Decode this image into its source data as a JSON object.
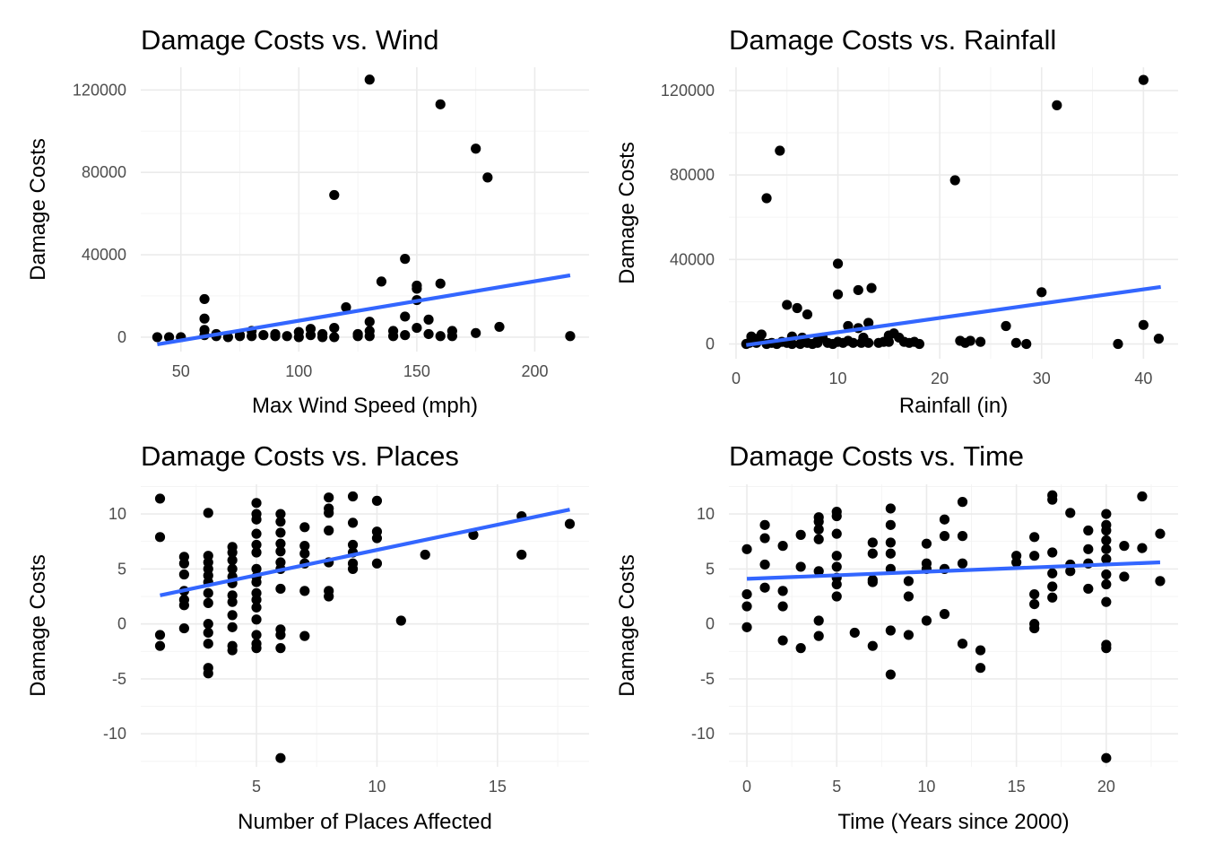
{
  "chart_data": [
    {
      "type": "scatter",
      "title": "Damage Costs vs. Wind",
      "xlabel": "Max Wind Speed (mph)",
      "ylabel": "Damage Costs",
      "xlim": [
        33,
        223
      ],
      "ylim": [
        -7000,
        131000
      ],
      "xticks": [
        50,
        100,
        150,
        200
      ],
      "yticks": [
        0,
        40000,
        80000,
        120000
      ],
      "grid": true,
      "trend": {
        "x": [
          40,
          215
        ],
        "y": [
          -3500,
          30000
        ]
      },
      "points": [
        [
          40,
          0
        ],
        [
          45,
          0
        ],
        [
          50,
          0
        ],
        [
          60,
          18500
        ],
        [
          60,
          9000
        ],
        [
          60,
          3500
        ],
        [
          60,
          1000
        ],
        [
          65,
          1500
        ],
        [
          65,
          500
        ],
        [
          70,
          0
        ],
        [
          75,
          500
        ],
        [
          75,
          1000
        ],
        [
          80,
          3000
        ],
        [
          80,
          500
        ],
        [
          85,
          1000
        ],
        [
          90,
          1500
        ],
        [
          90,
          500
        ],
        [
          95,
          500
        ],
        [
          100,
          2500
        ],
        [
          100,
          0
        ],
        [
          105,
          4000
        ],
        [
          105,
          1000
        ],
        [
          110,
          0
        ],
        [
          110,
          1500
        ],
        [
          115,
          69000
        ],
        [
          115,
          4500
        ],
        [
          115,
          0
        ],
        [
          120,
          14500
        ],
        [
          125,
          1500
        ],
        [
          125,
          500
        ],
        [
          130,
          7500
        ],
        [
          130,
          3000
        ],
        [
          130,
          500
        ],
        [
          130,
          125000
        ],
        [
          135,
          27000
        ],
        [
          140,
          500
        ],
        [
          140,
          3000
        ],
        [
          145,
          38000
        ],
        [
          145,
          10000
        ],
        [
          145,
          1000
        ],
        [
          150,
          25000
        ],
        [
          150,
          23500
        ],
        [
          150,
          18000
        ],
        [
          150,
          4500
        ],
        [
          155,
          8500
        ],
        [
          155,
          1500
        ],
        [
          160,
          113000
        ],
        [
          160,
          26000
        ],
        [
          160,
          500
        ],
        [
          165,
          3000
        ],
        [
          165,
          500
        ],
        [
          175,
          91500
        ],
        [
          175,
          2000
        ],
        [
          180,
          77500
        ],
        [
          185,
          5000
        ],
        [
          215,
          500
        ]
      ]
    },
    {
      "type": "scatter",
      "title": "Damage Costs vs. Rainfall",
      "xlabel": "Rainfall (in)",
      "ylabel": "Damage Costs",
      "xlim": [
        -0.7,
        43.4
      ],
      "ylim": [
        -7000,
        131000
      ],
      "xticks": [
        0,
        10,
        20,
        30,
        40
      ],
      "yticks": [
        0,
        40000,
        80000,
        120000
      ],
      "grid": true,
      "trend": {
        "x": [
          1,
          41.7
        ],
        "y": [
          -500,
          27000
        ]
      },
      "points": [
        [
          1,
          0
        ],
        [
          1.3,
          500
        ],
        [
          1.5,
          3500
        ],
        [
          1.8,
          1000
        ],
        [
          2,
          500
        ],
        [
          2.3,
          3000
        ],
        [
          2.5,
          4500
        ],
        [
          3,
          0
        ],
        [
          3,
          69000
        ],
        [
          3.5,
          500
        ],
        [
          4,
          0
        ],
        [
          4.3,
          91500
        ],
        [
          4.5,
          1000
        ],
        [
          5,
          500
        ],
        [
          5,
          18500
        ],
        [
          5.5,
          3500
        ],
        [
          5.5,
          0
        ],
        [
          6,
          17000
        ],
        [
          6.3,
          0
        ],
        [
          6.5,
          3000
        ],
        [
          7,
          14000
        ],
        [
          7,
          500
        ],
        [
          7.5,
          0
        ],
        [
          8,
          1500
        ],
        [
          8,
          500
        ],
        [
          8.5,
          3000
        ],
        [
          9,
          500
        ],
        [
          9.5,
          0
        ],
        [
          10,
          38000
        ],
        [
          10,
          23500
        ],
        [
          10,
          1000
        ],
        [
          10.5,
          500
        ],
        [
          11,
          8500
        ],
        [
          11,
          1500
        ],
        [
          11.5,
          500
        ],
        [
          12,
          25500
        ],
        [
          12,
          7500
        ],
        [
          12.3,
          500
        ],
        [
          12.5,
          3000
        ],
        [
          13,
          10000
        ],
        [
          13,
          500
        ],
        [
          13.3,
          26500
        ],
        [
          14,
          500
        ],
        [
          14.5,
          1000
        ],
        [
          15,
          4000
        ],
        [
          15,
          1000
        ],
        [
          15.5,
          5000
        ],
        [
          16,
          3000
        ],
        [
          16.5,
          1000
        ],
        [
          17,
          500
        ],
        [
          17.5,
          1000
        ],
        [
          18,
          0
        ],
        [
          21.5,
          77500
        ],
        [
          22,
          1500
        ],
        [
          22.5,
          500
        ],
        [
          23,
          1500
        ],
        [
          24,
          1000
        ],
        [
          26.5,
          8500
        ],
        [
          27.5,
          500
        ],
        [
          28.5,
          0
        ],
        [
          30,
          24500
        ],
        [
          31.5,
          113000
        ],
        [
          37.5,
          0
        ],
        [
          40,
          125000
        ],
        [
          40,
          9000
        ],
        [
          41.5,
          2500
        ]
      ]
    },
    {
      "type": "scatter",
      "title": "Damage Costs vs. Places",
      "xlabel": "Number of Places Affected",
      "ylabel": "Damage Costs",
      "xlim": [
        0.2,
        18.8
      ],
      "ylim": [
        -13.0,
        12.7
      ],
      "xticks": [
        5,
        10,
        15
      ],
      "yticks": [
        -10,
        -5,
        0,
        5,
        10
      ],
      "grid": true,
      "trend": {
        "x": [
          1,
          18
        ],
        "y": [
          2.6,
          10.4
        ]
      },
      "points": [
        [
          1,
          11.4
        ],
        [
          1,
          7.9
        ],
        [
          1,
          -1.0
        ],
        [
          1,
          -2.0
        ],
        [
          2,
          6.1
        ],
        [
          2,
          5.5
        ],
        [
          2,
          4.5
        ],
        [
          2,
          3.0
        ],
        [
          2,
          2.2
        ],
        [
          2,
          1.7
        ],
        [
          2,
          -0.4
        ],
        [
          3,
          10.1
        ],
        [
          3,
          6.2
        ],
        [
          3,
          5.6
        ],
        [
          3,
          5.0
        ],
        [
          3,
          4.4
        ],
        [
          3,
          3.8
        ],
        [
          3,
          2.8
        ],
        [
          3,
          1.9
        ],
        [
          3,
          0.0
        ],
        [
          3,
          -0.8
        ],
        [
          3,
          -1.8
        ],
        [
          3,
          -4.0
        ],
        [
          3,
          -4.5
        ],
        [
          4,
          7.0
        ],
        [
          4,
          6.5
        ],
        [
          4,
          5.8
        ],
        [
          4,
          5.0
        ],
        [
          4,
          4.3
        ],
        [
          4,
          3.7
        ],
        [
          4,
          2.6
        ],
        [
          4,
          2.0
        ],
        [
          4,
          0.8
        ],
        [
          4,
          -0.3
        ],
        [
          4,
          -2.0
        ],
        [
          4,
          -2.4
        ],
        [
          5,
          11.0
        ],
        [
          5,
          10.0
        ],
        [
          5,
          9.5
        ],
        [
          5,
          8.2
        ],
        [
          5,
          7.2
        ],
        [
          5,
          6.5
        ],
        [
          5,
          5.0
        ],
        [
          5,
          4.3
        ],
        [
          5,
          3.8
        ],
        [
          5,
          2.8
        ],
        [
          5,
          2.2
        ],
        [
          5,
          1.5
        ],
        [
          5,
          0.4
        ],
        [
          5,
          -1.0
        ],
        [
          5,
          -1.8
        ],
        [
          5,
          -2.2
        ],
        [
          6,
          10.0
        ],
        [
          6,
          9.3
        ],
        [
          6,
          8.3
        ],
        [
          6,
          7.3
        ],
        [
          6,
          6.6
        ],
        [
          6,
          5.6
        ],
        [
          6,
          5.0
        ],
        [
          6,
          3.2
        ],
        [
          6,
          -0.5
        ],
        [
          6,
          -1.0
        ],
        [
          6,
          -2.2
        ],
        [
          6,
          -12.2
        ],
        [
          7,
          8.8
        ],
        [
          7,
          7.1
        ],
        [
          7,
          6.4
        ],
        [
          7,
          5.5
        ],
        [
          7,
          3.0
        ],
        [
          7,
          -1.1
        ],
        [
          8,
          11.5
        ],
        [
          8,
          10.5
        ],
        [
          8,
          10.1
        ],
        [
          8,
          8.5
        ],
        [
          8,
          5.6
        ],
        [
          8,
          3.0
        ],
        [
          8,
          2.5
        ],
        [
          9,
          11.6
        ],
        [
          9,
          9.2
        ],
        [
          9,
          7.2
        ],
        [
          9,
          6.5
        ],
        [
          9,
          5.5
        ],
        [
          9,
          5.0
        ],
        [
          10,
          11.2
        ],
        [
          10,
          8.4
        ],
        [
          10,
          7.8
        ],
        [
          10,
          5.5
        ],
        [
          11,
          0.3
        ],
        [
          12,
          6.3
        ],
        [
          14,
          8.1
        ],
        [
          16,
          9.8
        ],
        [
          16,
          6.3
        ],
        [
          18,
          9.1
        ]
      ]
    },
    {
      "type": "scatter",
      "title": "Damage Costs vs. Time",
      "xlabel": "Time (Years since 2000)",
      "ylabel": "Damage Costs",
      "xlim": [
        -1.0,
        24.0
      ],
      "ylim": [
        -13.0,
        12.7
      ],
      "xticks": [
        0,
        5,
        10,
        15,
        20
      ],
      "yticks": [
        -10,
        -5,
        0,
        5,
        10
      ],
      "grid": true,
      "trend": {
        "x": [
          0,
          23
        ],
        "y": [
          4.1,
          5.6
        ]
      },
      "points": [
        [
          0,
          6.8
        ],
        [
          0,
          2.7
        ],
        [
          0,
          1.6
        ],
        [
          0,
          -0.3
        ],
        [
          1,
          9.0
        ],
        [
          1,
          7.8
        ],
        [
          1,
          5.4
        ],
        [
          1,
          3.3
        ],
        [
          2,
          7.1
        ],
        [
          2,
          3.0
        ],
        [
          2,
          1.6
        ],
        [
          2,
          -1.5
        ],
        [
          3,
          8.1
        ],
        [
          3,
          5.2
        ],
        [
          3,
          -2.2
        ],
        [
          4,
          9.7
        ],
        [
          4,
          9.3
        ],
        [
          4,
          8.6
        ],
        [
          4,
          7.7
        ],
        [
          4,
          4.8
        ],
        [
          4,
          0.3
        ],
        [
          4,
          -1.1
        ],
        [
          5,
          10.2
        ],
        [
          5,
          9.8
        ],
        [
          5,
          8.2
        ],
        [
          5,
          6.2
        ],
        [
          5,
          5.2
        ],
        [
          5,
          4.2
        ],
        [
          5,
          3.6
        ],
        [
          5,
          2.5
        ],
        [
          6,
          -0.8
        ],
        [
          7,
          7.4
        ],
        [
          7,
          6.4
        ],
        [
          7,
          4.0
        ],
        [
          7,
          3.8
        ],
        [
          7,
          -2.0
        ],
        [
          8,
          10.5
        ],
        [
          8,
          9.0
        ],
        [
          8,
          7.4
        ],
        [
          8,
          6.4
        ],
        [
          8,
          5.0
        ],
        [
          8,
          -0.6
        ],
        [
          8,
          -4.6
        ],
        [
          9,
          3.9
        ],
        [
          9,
          2.5
        ],
        [
          9,
          -1.0
        ],
        [
          10,
          7.3
        ],
        [
          10,
          5.5
        ],
        [
          10,
          5.0
        ],
        [
          10,
          0.3
        ],
        [
          11,
          9.5
        ],
        [
          11,
          8.0
        ],
        [
          11,
          5.0
        ],
        [
          11,
          0.9
        ],
        [
          12,
          11.1
        ],
        [
          12,
          8.0
        ],
        [
          12,
          5.5
        ],
        [
          12,
          -1.8
        ],
        [
          13,
          -2.4
        ],
        [
          13,
          -4.0
        ],
        [
          15,
          6.2
        ],
        [
          15,
          5.6
        ],
        [
          16,
          7.9
        ],
        [
          16,
          6.2
        ],
        [
          16,
          2.7
        ],
        [
          16,
          1.8
        ],
        [
          16,
          0.0
        ],
        [
          16,
          -0.4
        ],
        [
          17,
          11.7
        ],
        [
          17,
          11.3
        ],
        [
          17,
          6.5
        ],
        [
          17,
          4.6
        ],
        [
          17,
          3.4
        ],
        [
          17,
          2.4
        ],
        [
          18,
          10.1
        ],
        [
          18,
          5.4
        ],
        [
          18,
          4.8
        ],
        [
          19,
          8.5
        ],
        [
          19,
          6.8
        ],
        [
          19,
          5.5
        ],
        [
          19,
          3.2
        ],
        [
          20,
          10.0
        ],
        [
          20,
          9.0
        ],
        [
          20,
          8.5
        ],
        [
          20,
          7.6
        ],
        [
          20,
          6.8
        ],
        [
          20,
          5.9
        ],
        [
          20,
          4.5
        ],
        [
          20,
          3.6
        ],
        [
          20,
          2.0
        ],
        [
          20,
          -1.9
        ],
        [
          20,
          -2.2
        ],
        [
          20,
          -12.2
        ],
        [
          21,
          7.1
        ],
        [
          21,
          4.3
        ],
        [
          22,
          11.6
        ],
        [
          22,
          6.9
        ],
        [
          23,
          8.2
        ],
        [
          23,
          3.9
        ]
      ]
    }
  ]
}
